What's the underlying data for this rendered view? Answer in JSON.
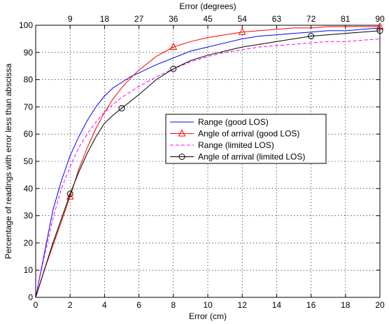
{
  "chart_data": {
    "type": "line",
    "title": "",
    "xlabel": "Error (cm)",
    "x2label": "Error (degrees)",
    "ylabel": "Percentage of readings with error less than abscissa",
    "xlim": [
      0,
      20
    ],
    "ylim": [
      0,
      100
    ],
    "x_ticks": [
      "0",
      "2",
      "4",
      "6",
      "8",
      "10",
      "12",
      "14",
      "16",
      "18",
      "20"
    ],
    "x2_ticks": [
      "9",
      "18",
      "27",
      "36",
      "45",
      "54",
      "63",
      "72",
      "81",
      "90"
    ],
    "y_ticks": [
      "0",
      "10",
      "20",
      "30",
      "40",
      "50",
      "60",
      "70",
      "80",
      "90",
      "100"
    ],
    "grid": true,
    "legend_position": "center-right",
    "series": [
      {
        "name": "Range (good LOS)",
        "color": "#0000ff",
        "dash": "solid",
        "marker": "none",
        "x": [
          0,
          0.5,
          1,
          1.5,
          2,
          2.5,
          3,
          3.5,
          4,
          4.5,
          5,
          5.5,
          6,
          7,
          8,
          9,
          10,
          11,
          12,
          13,
          14,
          15,
          16,
          17,
          18,
          19,
          20
        ],
        "y": [
          0,
          16,
          32,
          43,
          52,
          59,
          65,
          70,
          74,
          77,
          79,
          81,
          82.5,
          85.5,
          88,
          90.5,
          92,
          93.5,
          95,
          96,
          96.5,
          97,
          97.5,
          98,
          98,
          98.5,
          99
        ]
      },
      {
        "name": "Angle of arrival (good LOS)",
        "color": "#ff0000",
        "dash": "solid",
        "marker": "triangle",
        "x": [
          0,
          0.5,
          1,
          1.5,
          2,
          2.5,
          3,
          3.5,
          4,
          4.5,
          5,
          5.5,
          6,
          7,
          8,
          9,
          10,
          11,
          12,
          13,
          14,
          15,
          16,
          17,
          18,
          19,
          20
        ],
        "y": [
          0,
          10,
          19,
          28,
          37,
          47,
          55,
          62,
          68,
          73,
          77,
          80.5,
          83.5,
          88.5,
          92,
          94,
          95.5,
          96.5,
          97.5,
          98,
          98.5,
          99,
          99,
          99.5,
          99.5,
          99.5,
          99.5
        ],
        "marker_x": [
          2,
          8,
          12,
          20
        ]
      },
      {
        "name": "Range (limited LOS)",
        "color": "#ff00ff",
        "dash": "dashed",
        "marker": "none",
        "x": [
          0,
          0.5,
          1,
          1.5,
          2,
          2.5,
          3,
          3.5,
          4,
          4.5,
          5,
          5.5,
          6,
          7,
          8,
          9,
          10,
          11,
          12,
          13,
          14,
          15,
          16,
          17,
          18,
          19,
          20
        ],
        "y": [
          0,
          15,
          29,
          40,
          48,
          55,
          60,
          64.5,
          68,
          71,
          73.5,
          75.5,
          77.5,
          81,
          84,
          86.5,
          88.5,
          90,
          91,
          92,
          92.5,
          93,
          93.5,
          94,
          94,
          94.5,
          95
        ]
      },
      {
        "name": "Angle of arrival (limited LOS)",
        "color": "#000000",
        "dash": "solid",
        "marker": "circle",
        "x": [
          0,
          0.5,
          1,
          1.5,
          2,
          2.5,
          3,
          3.5,
          4,
          4.5,
          5,
          5.5,
          6,
          7,
          8,
          9,
          10,
          11,
          12,
          13,
          14,
          15,
          16,
          17,
          18,
          19,
          20
        ],
        "y": [
          0,
          10,
          20,
          29,
          38,
          46,
          53,
          59,
          64,
          67,
          69.5,
          72,
          74.5,
          80,
          84,
          87,
          89,
          90.5,
          92,
          93,
          94,
          95,
          96,
          96.5,
          97,
          97.5,
          98
        ],
        "marker_x": [
          2,
          5,
          8,
          16,
          20
        ]
      }
    ]
  }
}
